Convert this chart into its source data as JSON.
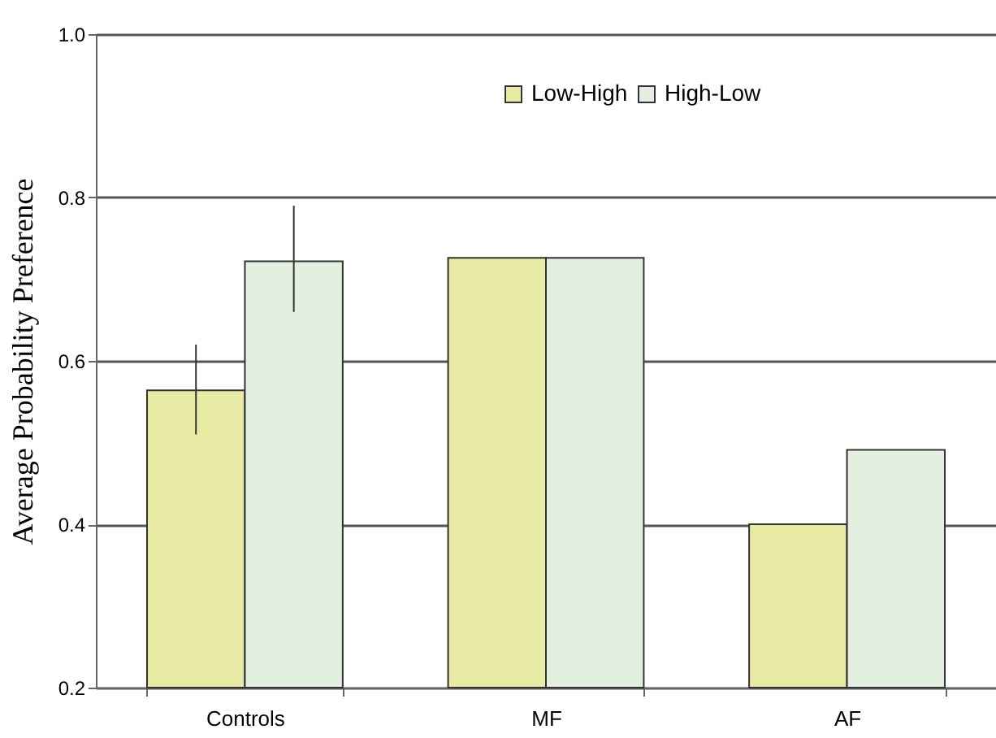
{
  "chart_data": {
    "type": "bar",
    "ylabel": "Average Probability Preference",
    "categories": [
      "Controls",
      "MF",
      "AF"
    ],
    "series": [
      {
        "name": "Low-High",
        "color": "#e8eba4",
        "values": [
          0.564,
          0.726,
          0.4
        ],
        "errors": [
          [
            0.51,
            0.62
          ],
          null,
          null
        ]
      },
      {
        "name": "High-Low",
        "color": "#e3f0df",
        "values": [
          0.722,
          0.726,
          0.491
        ],
        "errors": [
          [
            0.66,
            0.79
          ],
          null,
          null
        ]
      }
    ],
    "ylim": [
      0.2,
      1.0
    ],
    "yticks": [
      0.2,
      0.4,
      0.6,
      0.8,
      {
        "value": 1.0,
        "label": "1.0"
      }
    ],
    "grid": "y",
    "legend": "top"
  }
}
